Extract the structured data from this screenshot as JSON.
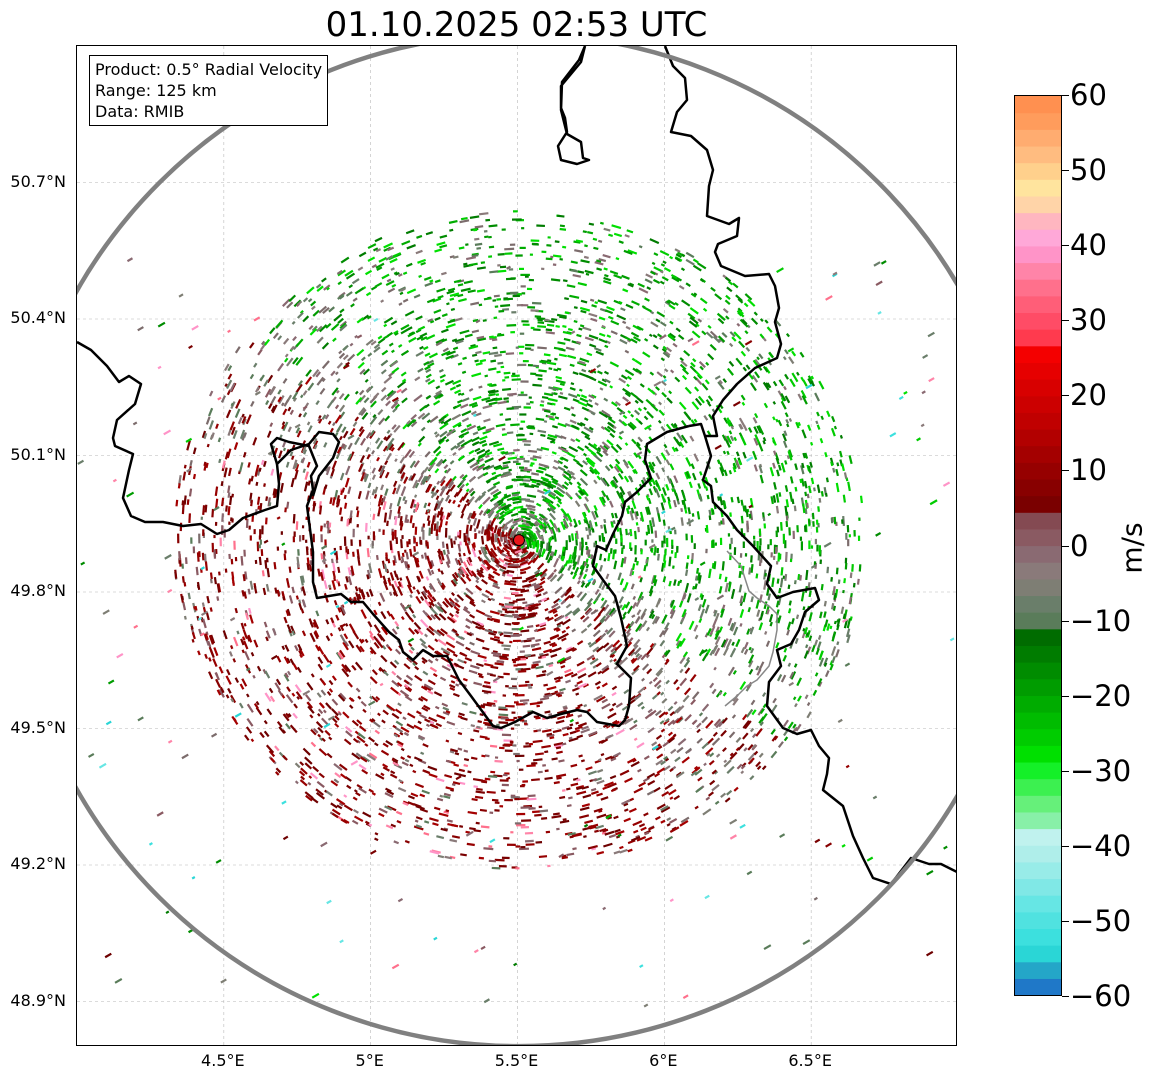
{
  "title": "01.10.2025 02:53 UTC",
  "info_box": {
    "product": "Product: 0.5° Radial Velocity",
    "range": "Range: 125 km",
    "data": "Data: RMIB"
  },
  "map": {
    "lon_range": [
      4.0,
      7.0
    ],
    "lat_range": [
      48.8,
      51.0
    ],
    "lat_ticks": [
      {
        "value": 50.7,
        "label": "50.7°N"
      },
      {
        "value": 50.4,
        "label": "50.4°N"
      },
      {
        "value": 50.1,
        "label": "50.1°N"
      },
      {
        "value": 49.8,
        "label": "49.8°N"
      },
      {
        "value": 49.5,
        "label": "49.5°N"
      },
      {
        "value": 49.2,
        "label": "49.2°N"
      },
      {
        "value": 48.9,
        "label": "48.9°N"
      }
    ],
    "lon_ticks": [
      {
        "value": 4.5,
        "label": "4.5°E"
      },
      {
        "value": 5.0,
        "label": "5°E"
      },
      {
        "value": 5.5,
        "label": "5.5°E"
      },
      {
        "value": 6.0,
        "label": "6°E"
      },
      {
        "value": 6.5,
        "label": "6.5°E"
      }
    ],
    "radar_site": {
      "lon": 5.505,
      "lat": 49.914
    },
    "range_ring_km": 125
  },
  "colorbar": {
    "unit": "m/s",
    "min": -60,
    "max": 60,
    "ticks": [
      {
        "value": 60,
        "label": "60"
      },
      {
        "value": 50,
        "label": "50"
      },
      {
        "value": 40,
        "label": "40"
      },
      {
        "value": 30,
        "label": "30"
      },
      {
        "value": 20,
        "label": "20"
      },
      {
        "value": 10,
        "label": "10"
      },
      {
        "value": 0,
        "label": "0"
      },
      {
        "value": -10,
        "label": "−10"
      },
      {
        "value": -20,
        "label": "−20"
      },
      {
        "value": -30,
        "label": "−30"
      },
      {
        "value": -40,
        "label": "−40"
      },
      {
        "value": -50,
        "label": "−50"
      },
      {
        "value": -60,
        "label": "−60"
      }
    ],
    "colors": [
      "#1f78c8",
      "#24a6c8",
      "#2ad6d6",
      "#3ce0de",
      "#50e2e0",
      "#66e6e4",
      "#80e8e6",
      "#98ece8",
      "#afeeea",
      "#c0f2ee",
      "#88f0a8",
      "#66f07a",
      "#3cf050",
      "#14f028",
      "#00e000",
      "#00cc00",
      "#00bc00",
      "#00ac00",
      "#009c00",
      "#008c00",
      "#007c00",
      "#006c00",
      "#5a7c5a",
      "#6a7e6a",
      "#7e7e74",
      "#8a7a7a",
      "#8a6a72",
      "#8a5a62",
      "#844a52",
      "#7a0000",
      "#880000",
      "#960000",
      "#a40000",
      "#b20000",
      "#c00000",
      "#cc0000",
      "#d80000",
      "#e60000",
      "#f40000",
      "#ff3a4e",
      "#ff4c66",
      "#ff5e78",
      "#ff708c",
      "#ff84a8",
      "#ff94c8",
      "#ffa8d8",
      "#ffb6c0",
      "#ffd4a8",
      "#ffe49e",
      "#ffd08c",
      "#ffbc80",
      "#ffac70",
      "#ff9c5c",
      "#ff9050"
    ]
  },
  "colors": {
    "border": "#000000",
    "ring": "#808080",
    "grid": "#b8b8b8",
    "radar_marker": "#e8161b"
  }
}
